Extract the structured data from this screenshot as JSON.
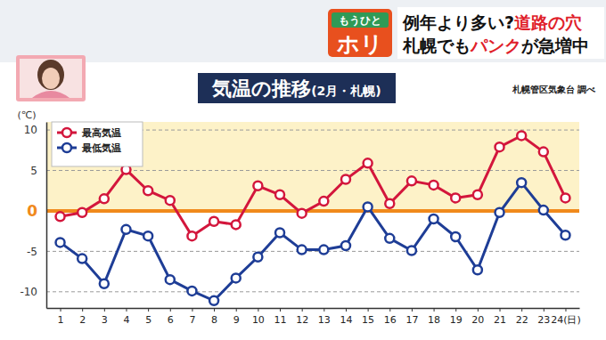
{
  "chart_data": {
    "type": "line",
    "title": "気温の推移",
    "subtitle": "(2月・札幌)",
    "y_label": "(℃)",
    "annotations": [
      {
        "text": "札幌管区気象台 調べ"
      },
      {
        "text": "もうひと"
      },
      {
        "text": "ホリ"
      },
      {
        "segments": [
          {
            "text": "例年より多い?",
            "color": "#111111"
          },
          {
            "text": "道路の穴",
            "color": "#e0202a"
          }
        ]
      },
      {
        "segments": [
          {
            "text": "札幌でも",
            "color": "#111111"
          },
          {
            "text": "パンク",
            "color": "#e0202a"
          },
          {
            "text": "が急増中",
            "color": "#111111"
          }
        ]
      }
    ],
    "categories": [
      "1",
      "2",
      "3",
      "4",
      "5",
      "6",
      "7",
      "8",
      "9",
      "10",
      "11",
      "12",
      "13",
      "14",
      "15",
      "16",
      "17",
      "18",
      "19",
      "20",
      "21",
      "22",
      "23",
      "24(日)"
    ],
    "series": [
      {
        "name": "最高気温",
        "color": "#d3163c",
        "marker": "circle",
        "line_style": "solid",
        "values": [
          -0.7,
          -0.2,
          1.5,
          5.1,
          2.5,
          1.3,
          -3.1,
          -1.3,
          -1.7,
          3.1,
          2.0,
          -0.3,
          1.2,
          3.9,
          5.9,
          0.9,
          3.7,
          3.2,
          1.6,
          2.0,
          7.9,
          9.3,
          7.3,
          1.6
        ]
      },
      {
        "name": "最低気温",
        "color": "#1e3d96",
        "marker": "circle",
        "line_style": "solid",
        "values": [
          -3.9,
          -5.9,
          -9.0,
          -2.3,
          -3.1,
          -8.5,
          -9.9,
          -11.1,
          -8.3,
          -5.7,
          -2.7,
          -4.8,
          -4.8,
          -4.3,
          0.5,
          -3.4,
          -4.9,
          -1.0,
          -3.2,
          -7.3,
          -0.2,
          3.5,
          0.1,
          -3.0
        ]
      }
    ],
    "ylim": [
      -12,
      11
    ],
    "yticks": [
      -10,
      -5,
      0,
      5,
      10
    ],
    "grid": true,
    "legend": "upper left"
  }
}
